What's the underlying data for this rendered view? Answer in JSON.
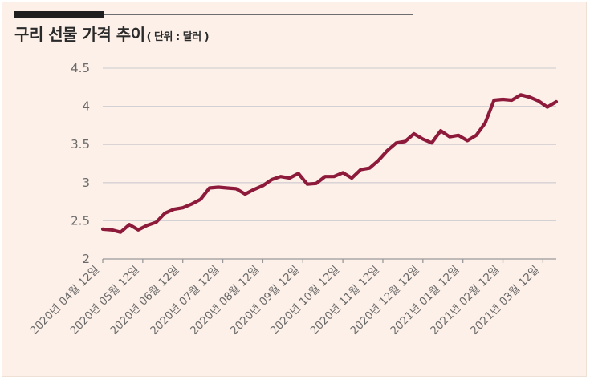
{
  "header": {
    "title": "구리 선물 가격 추이",
    "unit": "( 단위 : 달러 )"
  },
  "colors": {
    "background": "#fdf0e8",
    "line": "#8e1a3b",
    "grid": "#d4d1d4",
    "text": "#6a6a6a"
  },
  "chart_data": {
    "type": "line",
    "title": "구리 선물 가격 추이",
    "xlabel": "",
    "ylabel": "",
    "ylim": [
      2,
      4.5
    ],
    "grid": true,
    "y_ticks": [
      "2",
      "2.5",
      "3",
      "3.5",
      "4",
      "4.5"
    ],
    "x_tick_labels": [
      "2020년 04월 12일",
      "2020년 05월 12일",
      "2020년 06월 12일",
      "2020년 07월 12일",
      "2020년 08월 12일",
      "2020년 09월 12일",
      "2020년 10월 12일",
      "2020년 11월 12일",
      "2020년 12월 12일",
      "2021년 01월 12일",
      "2021년 02월 12일",
      "2021년 03월 12일"
    ],
    "values": [
      2.39,
      2.38,
      2.35,
      2.45,
      2.38,
      2.44,
      2.48,
      2.6,
      2.65,
      2.67,
      2.72,
      2.78,
      2.93,
      2.94,
      2.93,
      2.92,
      2.85,
      2.91,
      2.96,
      3.04,
      3.08,
      3.06,
      3.12,
      2.98,
      2.99,
      3.08,
      3.08,
      3.13,
      3.06,
      3.17,
      3.19,
      3.29,
      3.42,
      3.52,
      3.54,
      3.64,
      3.57,
      3.52,
      3.68,
      3.6,
      3.62,
      3.55,
      3.62,
      3.78,
      4.08,
      4.09,
      4.08,
      4.15,
      4.12,
      4.07,
      3.99,
      4.06
    ]
  }
}
